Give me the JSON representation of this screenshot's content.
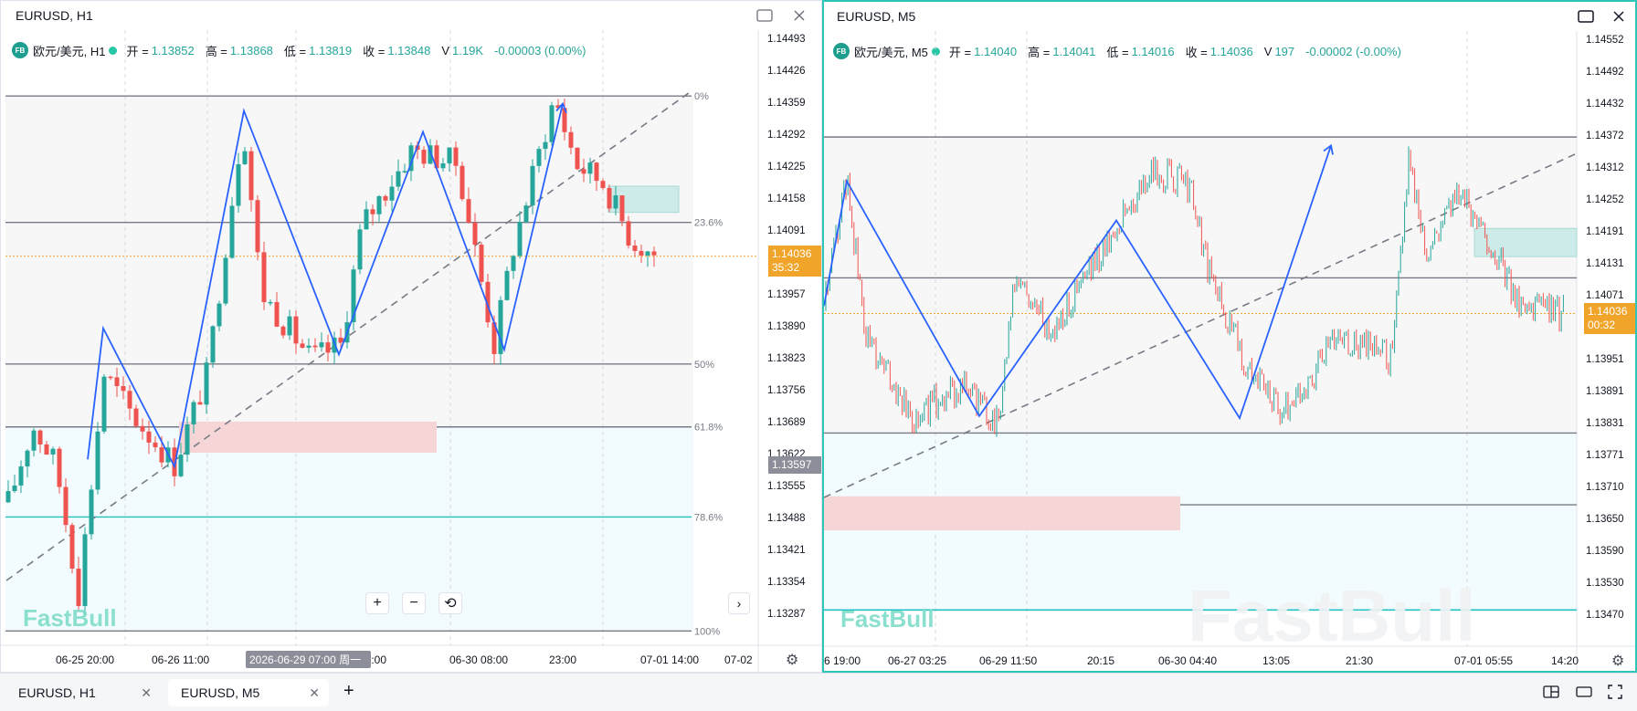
{
  "tabs": [
    {
      "label": "EURUSD, H1",
      "close": "✕"
    },
    {
      "label": "EURUSD, M5",
      "close": "✕"
    }
  ],
  "tab_add": "+",
  "left": {
    "title": "EURUSD, H1",
    "badge": "FB",
    "legend": {
      "symbol": "欧元/美元, H1",
      "open_label": "开 =",
      "open": "1.13852",
      "high_label": "高 =",
      "high": "1.13868",
      "low_label": "低 =",
      "low": "1.13819",
      "close_label": "收 =",
      "close": "1.13848",
      "vol_label": "V",
      "vol": "1.19K",
      "change": "-0.00003 (0.00%)"
    },
    "price_labels": [
      "1.14493",
      "1.14426",
      "1.14359",
      "1.14292",
      "1.14225",
      "1.14158",
      "1.14091",
      "1.14024",
      "1.13957",
      "1.13890",
      "1.13823",
      "1.13756",
      "1.13689",
      "1.13622",
      "1.13555",
      "1.13488",
      "1.13421",
      "1.13354",
      "1.13287"
    ],
    "current_price": "1.14036",
    "countdown": "35:32",
    "cursor_price": "1.13597",
    "fib_levels": [
      {
        "label": "0%",
        "value": 1.14372
      },
      {
        "label": "23.6%",
        "value": 1.14107
      },
      {
        "label": "50%",
        "value": 1.1381
      },
      {
        "label": "61.8%",
        "value": 1.13678
      },
      {
        "label": "78.6%",
        "value": 1.13489
      },
      {
        "label": "100%",
        "value": 1.1325
      }
    ],
    "time_labels": [
      "06-25 20:00",
      "06-26 11:00",
      "17:00",
      "06-30 08:00",
      "23:00",
      "07-01 14:00",
      "07-02"
    ],
    "crosshair_time": "2026-06-29 07:00 周一",
    "watermark": "FastBull",
    "zoom_in": "+",
    "zoom_out": "−",
    "reset": "⟲",
    "nav_next": "›",
    "colors": {
      "up": "#26a69a",
      "down": "#ef5350",
      "zigzag": "#2962ff",
      "fib_cyan": "#22c1c3"
    }
  },
  "right": {
    "title": "EURUSD, M5",
    "badge": "FB",
    "legend": {
      "symbol": "欧元/美元, M5",
      "open_label": "开 =",
      "open": "1.14040",
      "high_label": "高 =",
      "high": "1.14041",
      "low_label": "低 =",
      "low": "1.14016",
      "close_label": "收 =",
      "close": "1.14036",
      "vol_label": "V",
      "vol": "197",
      "change": "-0.00002 (-0.00%)"
    },
    "price_labels": [
      "1.14552",
      "1.14492",
      "1.14432",
      "1.14372",
      "1.14312",
      "1.14252",
      "1.14191",
      "1.14131",
      "1.14071",
      "1.14011",
      "1.13951",
      "1.13891",
      "1.13831",
      "1.13771",
      "1.13710",
      "1.13650",
      "1.13590",
      "1.13530",
      "1.13470"
    ],
    "current_price": "1.14036",
    "countdown": "00:32",
    "time_labels": [
      "6 19:00",
      "06-27 03:25",
      "06-29 11:50",
      "20:15",
      "06-30 04:40",
      "13:05",
      "21:30",
      "07-01 05:55",
      "14:20"
    ],
    "watermark": "FastBull",
    "watermark_big": "FastBull"
  },
  "window_controls": {
    "maximize": "□",
    "close": "✕"
  }
}
